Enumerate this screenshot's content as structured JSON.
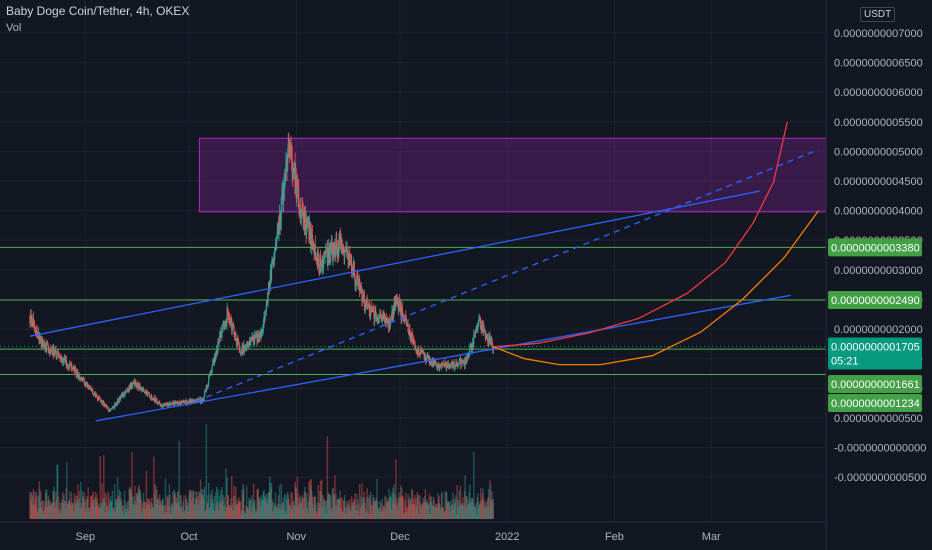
{
  "header": {
    "symbol": "Baby Doge Coin/Tether, 4h, OKEX",
    "vol_label": "Vol",
    "currency": "USDT"
  },
  "colors": {
    "background": "#131722",
    "up": "#26a69a",
    "down": "#ef5350",
    "trend": "#2962ff",
    "zone": "#9c27b0",
    "level": "#4caf50",
    "red_curve": "#f23645",
    "orange_curve": "#f57c00",
    "price_badge": "#089981"
  },
  "chart_data": {
    "type": "candlestick",
    "title": "Baby Doge Coin/Tether, 4h, OKEX",
    "x_ticks": [
      "Sep",
      "Oct",
      "Nov",
      "Dec",
      "2022",
      "Feb",
      "Mar"
    ],
    "y_ticks": [
      "0.0000000007000",
      "0.0000000006500",
      "0.0000000006000",
      "0.0000000005500",
      "0.0000000005000",
      "0.0000000004500",
      "0.0000000004000",
      "0.0000000003500",
      "0.0000000003000",
      "0.0000000002500",
      "0.0000000002000",
      "0.0000000001500",
      "0.0000000001000",
      "0.0000000000500",
      "-0.0000000000000",
      "-0.0000000000500"
    ],
    "price_levels": [
      {
        "label": "0.0000000003380",
        "value": 3.38e-10
      },
      {
        "label": "0.0000000002490",
        "value": 2.49e-10
      },
      {
        "label": "0.0000000001661",
        "value": 1.661e-10
      },
      {
        "label": "0.0000000001234",
        "value": 1.234e-10
      }
    ],
    "last_price": {
      "label": "0.0000000001705",
      "value": 1.705e-10,
      "countdown": "05:21"
    },
    "resistance_zone": {
      "from": 3.98e-10,
      "to": 5.22e-10
    },
    "anchors": [
      {
        "date": "2021-08-16",
        "price": 2.22e-10
      },
      {
        "date": "2021-08-19",
        "price": 1.8e-10
      },
      {
        "date": "2021-08-28",
        "price": 1.35e-10
      },
      {
        "date": "2021-09-08",
        "price": 6.2e-11
      },
      {
        "date": "2021-09-15",
        "price": 1.1e-10
      },
      {
        "date": "2021-09-23",
        "price": 7.2e-11
      },
      {
        "date": "2021-10-05",
        "price": 8e-11
      },
      {
        "date": "2021-10-12",
        "price": 2.25e-10
      },
      {
        "date": "2021-10-16",
        "price": 1.65e-10
      },
      {
        "date": "2021-10-22",
        "price": 1.9e-10
      },
      {
        "date": "2021-10-27",
        "price": 3.8e-10
      },
      {
        "date": "2021-10-30",
        "price": 5.05e-10
      },
      {
        "date": "2021-11-02",
        "price": 4.05e-10
      },
      {
        "date": "2021-11-08",
        "price": 3.1e-10
      },
      {
        "date": "2021-11-14",
        "price": 3.5e-10
      },
      {
        "date": "2021-11-22",
        "price": 2.3e-10
      },
      {
        "date": "2021-11-28",
        "price": 2.1e-10
      },
      {
        "date": "2021-11-30",
        "price": 2.5e-10
      },
      {
        "date": "2021-12-06",
        "price": 1.65e-10
      },
      {
        "date": "2021-12-12",
        "price": 1.35e-10
      },
      {
        "date": "2021-12-20",
        "price": 1.45e-10
      },
      {
        "date": "2021-12-24",
        "price": 2.1e-10
      },
      {
        "date": "2021-12-28",
        "price": 1.7e-10
      }
    ],
    "trendlines": [
      {
        "style": "solid",
        "from": {
          "date": "2021-08-16",
          "price": 1.88e-10
        },
        "to": {
          "date": "2022-03-15",
          "price": 4.33e-10
        }
      },
      {
        "style": "solid",
        "from": {
          "date": "2021-09-04",
          "price": 4.5e-11
        },
        "to": {
          "date": "2022-03-24",
          "price": 2.57e-10
        }
      },
      {
        "style": "dashed",
        "from": {
          "date": "2021-10-03",
          "price": 7.8e-11
        },
        "to": {
          "date": "2022-04-01",
          "price": 5.03e-10
        }
      }
    ],
    "projections": [
      {
        "name": "",
        "color": "red",
        "points": [
          {
            "date": "2021-12-28",
            "price": 1.7e-10
          },
          {
            "date": "2022-01-10",
            "price": 1.76e-10
          },
          {
            "date": "2022-01-25",
            "price": 1.94e-10
          },
          {
            "date": "2022-02-08",
            "price": 2.18e-10
          },
          {
            "date": "2022-02-22",
            "price": 2.6e-10
          },
          {
            "date": "2022-03-05",
            "price": 3.12e-10
          },
          {
            "date": "2022-03-13",
            "price": 3.78e-10
          },
          {
            "date": "2022-03-19",
            "price": 4.48e-10
          },
          {
            "date": "2022-03-23",
            "price": 5.5e-10
          }
        ]
      },
      {
        "name": "",
        "color": "orange",
        "points": [
          {
            "date": "2021-12-28",
            "price": 1.7e-10
          },
          {
            "date": "2022-01-06",
            "price": 1.5e-10
          },
          {
            "date": "2022-01-16",
            "price": 1.4e-10
          },
          {
            "date": "2022-01-28",
            "price": 1.4e-10
          },
          {
            "date": "2022-02-12",
            "price": 1.55e-10
          },
          {
            "date": "2022-02-26",
            "price": 1.95e-10
          },
          {
            "date": "2022-03-10",
            "price": 2.5e-10
          },
          {
            "date": "2022-03-22",
            "price": 3.2e-10
          },
          {
            "date": "2022-04-01",
            "price": 4e-10
          }
        ]
      }
    ],
    "ylim": [
      -7e-11,
      7.1e-10
    ],
    "grid": true,
    "legend": "top-left"
  }
}
